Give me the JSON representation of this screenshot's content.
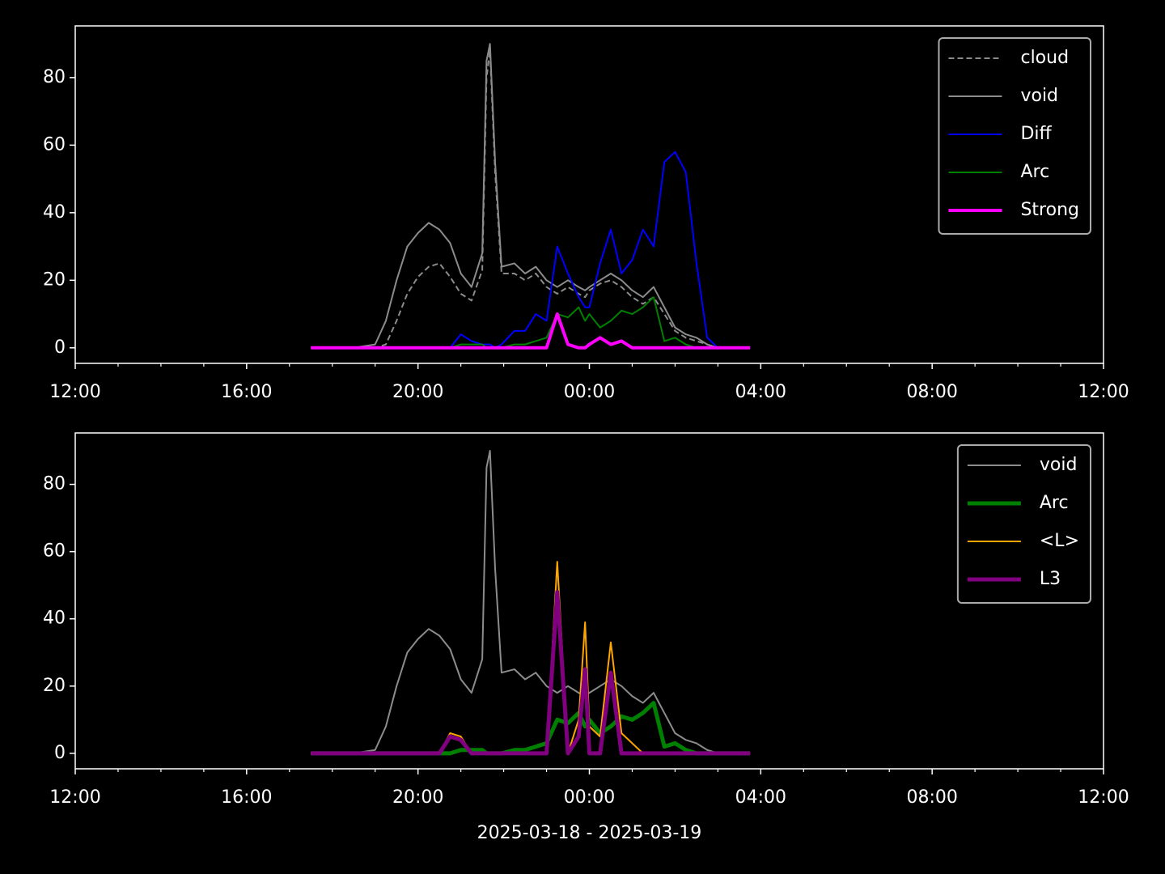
{
  "chart_data": [
    {
      "type": "line",
      "legend": "upper right",
      "x": [
        5.5,
        6.0,
        6.5,
        7.0,
        7.25,
        7.5,
        7.75,
        8.0,
        8.25,
        8.5,
        8.75,
        9.0,
        9.25,
        9.5,
        9.6,
        9.68,
        9.8,
        9.95,
        10.25,
        10.5,
        10.75,
        11.0,
        11.25,
        11.5,
        11.75,
        11.9,
        12.0,
        12.25,
        12.5,
        12.75,
        13.0,
        13.25,
        13.5,
        13.75,
        14.0,
        14.25,
        14.5,
        14.75,
        15.0,
        15.25,
        15.75
      ],
      "xlim": [
        0,
        24
      ],
      "xticks": [
        {
          "value": 0,
          "label": "12:00"
        },
        {
          "value": 4,
          "label": "16:00"
        },
        {
          "value": 8,
          "label": "20:00"
        },
        {
          "value": 12,
          "label": "00:00"
        },
        {
          "value": 16,
          "label": "04:00"
        },
        {
          "value": 20,
          "label": "08:00"
        },
        {
          "value": 24,
          "label": "12:00"
        }
      ],
      "xminorticks": [
        1,
        2,
        3,
        5,
        6,
        7,
        9,
        10,
        11,
        13,
        14,
        15,
        17,
        18,
        19,
        21,
        22,
        23
      ],
      "ylim": [
        -4.6,
        95.3
      ],
      "yticks": [
        0,
        20,
        40,
        60,
        80
      ],
      "series": [
        {
          "name": "cloud",
          "color": "#8c8c8c",
          "linestyle": "dashed",
          "linewidth": 2,
          "values": [
            0,
            0,
            0,
            0,
            1,
            8,
            16,
            21,
            24,
            25,
            21,
            16,
            14,
            23,
            80,
            88,
            52,
            22,
            22,
            20,
            22,
            18,
            16,
            18,
            16,
            15,
            17,
            19,
            20,
            18,
            15,
            13,
            15,
            10,
            5,
            3,
            2,
            1,
            0,
            0,
            0
          ]
        },
        {
          "name": "void",
          "color": "#8c8c8c",
          "linestyle": "solid",
          "linewidth": 2,
          "values": [
            0,
            0,
            0,
            1,
            8,
            20,
            30,
            34,
            37,
            35,
            31,
            22,
            18,
            28,
            85,
            90,
            55,
            24,
            25,
            22,
            24,
            20,
            18,
            20,
            18,
            17,
            18,
            20,
            22,
            20,
            17,
            15,
            18,
            12,
            6,
            4,
            3,
            1,
            0,
            0,
            0
          ]
        },
        {
          "name": "Diff",
          "color": "#0000ff",
          "linestyle": "solid",
          "linewidth": 2,
          "values": [
            0,
            0,
            0,
            0,
            0,
            0,
            0,
            0,
            0,
            0,
            0,
            4,
            2,
            1,
            1,
            1,
            0,
            1,
            5,
            5,
            10,
            8,
            30,
            22,
            15,
            12,
            12,
            25,
            35,
            22,
            26,
            35,
            30,
            55,
            58,
            52,
            25,
            3,
            0,
            0,
            0
          ]
        },
        {
          "name": "Arc",
          "color": "#008000",
          "linestyle": "solid",
          "linewidth": 2,
          "values": [
            0,
            0,
            0,
            0,
            0,
            0,
            0,
            0,
            0,
            0,
            0,
            1,
            1,
            1,
            0,
            0,
            0,
            0,
            1,
            1,
            2,
            3,
            10,
            9,
            12,
            8,
            10,
            6,
            8,
            11,
            10,
            12,
            15,
            2,
            3,
            1,
            0,
            0,
            0,
            0,
            0
          ]
        },
        {
          "name": "Strong",
          "color": "#ff00ff",
          "linestyle": "solid",
          "linewidth": 4,
          "values": [
            0,
            0,
            0,
            0,
            0,
            0,
            0,
            0,
            0,
            0,
            0,
            0,
            0,
            0,
            0,
            0,
            0,
            0,
            0,
            0,
            0,
            0,
            10,
            1,
            0,
            0,
            1,
            3,
            1,
            2,
            0,
            0,
            0,
            0,
            0,
            0,
            0,
            0,
            0,
            0,
            0
          ]
        }
      ]
    },
    {
      "type": "line",
      "legend": "upper right",
      "xlabel": "2025-03-18 - 2025-03-19",
      "x": [
        5.5,
        6.0,
        6.5,
        7.0,
        7.25,
        7.5,
        7.75,
        8.0,
        8.25,
        8.5,
        8.75,
        9.0,
        9.25,
        9.5,
        9.6,
        9.68,
        9.8,
        9.95,
        10.25,
        10.5,
        10.75,
        11.0,
        11.25,
        11.5,
        11.75,
        11.9,
        12.0,
        12.25,
        12.5,
        12.75,
        13.0,
        13.25,
        13.5,
        13.75,
        14.0,
        14.25,
        14.5,
        14.75,
        15.0,
        15.25,
        15.75
      ],
      "xlim": [
        0,
        24
      ],
      "xticks": [
        {
          "value": 0,
          "label": "12:00"
        },
        {
          "value": 4,
          "label": "16:00"
        },
        {
          "value": 8,
          "label": "20:00"
        },
        {
          "value": 12,
          "label": "00:00"
        },
        {
          "value": 16,
          "label": "04:00"
        },
        {
          "value": 20,
          "label": "08:00"
        },
        {
          "value": 24,
          "label": "12:00"
        }
      ],
      "xminorticks": [
        1,
        2,
        3,
        5,
        6,
        7,
        9,
        10,
        11,
        13,
        14,
        15,
        17,
        18,
        19,
        21,
        22,
        23
      ],
      "ylim": [
        -4.6,
        95.3
      ],
      "yticks": [
        0,
        20,
        40,
        60,
        80
      ],
      "series": [
        {
          "name": "void",
          "color": "#8c8c8c",
          "linestyle": "solid",
          "linewidth": 2,
          "values": [
            0,
            0,
            0,
            1,
            8,
            20,
            30,
            34,
            37,
            35,
            31,
            22,
            18,
            28,
            85,
            90,
            55,
            24,
            25,
            22,
            24,
            20,
            18,
            20,
            18,
            17,
            18,
            20,
            22,
            20,
            17,
            15,
            18,
            12,
            6,
            4,
            3,
            1,
            0,
            0,
            0
          ]
        },
        {
          "name": "Arc",
          "color": "#008000",
          "linestyle": "solid",
          "linewidth": 5,
          "values": [
            0,
            0,
            0,
            0,
            0,
            0,
            0,
            0,
            0,
            0,
            0,
            1,
            1,
            1,
            0,
            0,
            0,
            0,
            1,
            1,
            2,
            3,
            10,
            9,
            12,
            8,
            10,
            6,
            8,
            11,
            10,
            12,
            15,
            2,
            3,
            1,
            0,
            0,
            0,
            0,
            0
          ]
        },
        {
          "name": "<L>",
          "color": "#ffa500",
          "linestyle": "solid",
          "linewidth": 2,
          "values": [
            0,
            0,
            0,
            0,
            0,
            0,
            0,
            0,
            0,
            0,
            6,
            5,
            0,
            0,
            0,
            0,
            0,
            0,
            0,
            0,
            0,
            0,
            57,
            0,
            10,
            39,
            8,
            5,
            33,
            6,
            3,
            0,
            0,
            0,
            0,
            0,
            0,
            0,
            0,
            0,
            0
          ]
        },
        {
          "name": "L3",
          "color": "#800080",
          "linestyle": "solid",
          "linewidth": 5,
          "values": [
            0,
            0,
            0,
            0,
            0,
            0,
            0,
            0,
            0,
            0,
            5,
            4,
            0,
            0,
            0,
            0,
            0,
            0,
            0,
            0,
            0,
            0,
            48,
            0,
            5,
            25,
            0,
            0,
            24,
            0,
            0,
            0,
            0,
            0,
            0,
            0,
            0,
            0,
            0,
            0,
            0
          ]
        }
      ]
    }
  ]
}
